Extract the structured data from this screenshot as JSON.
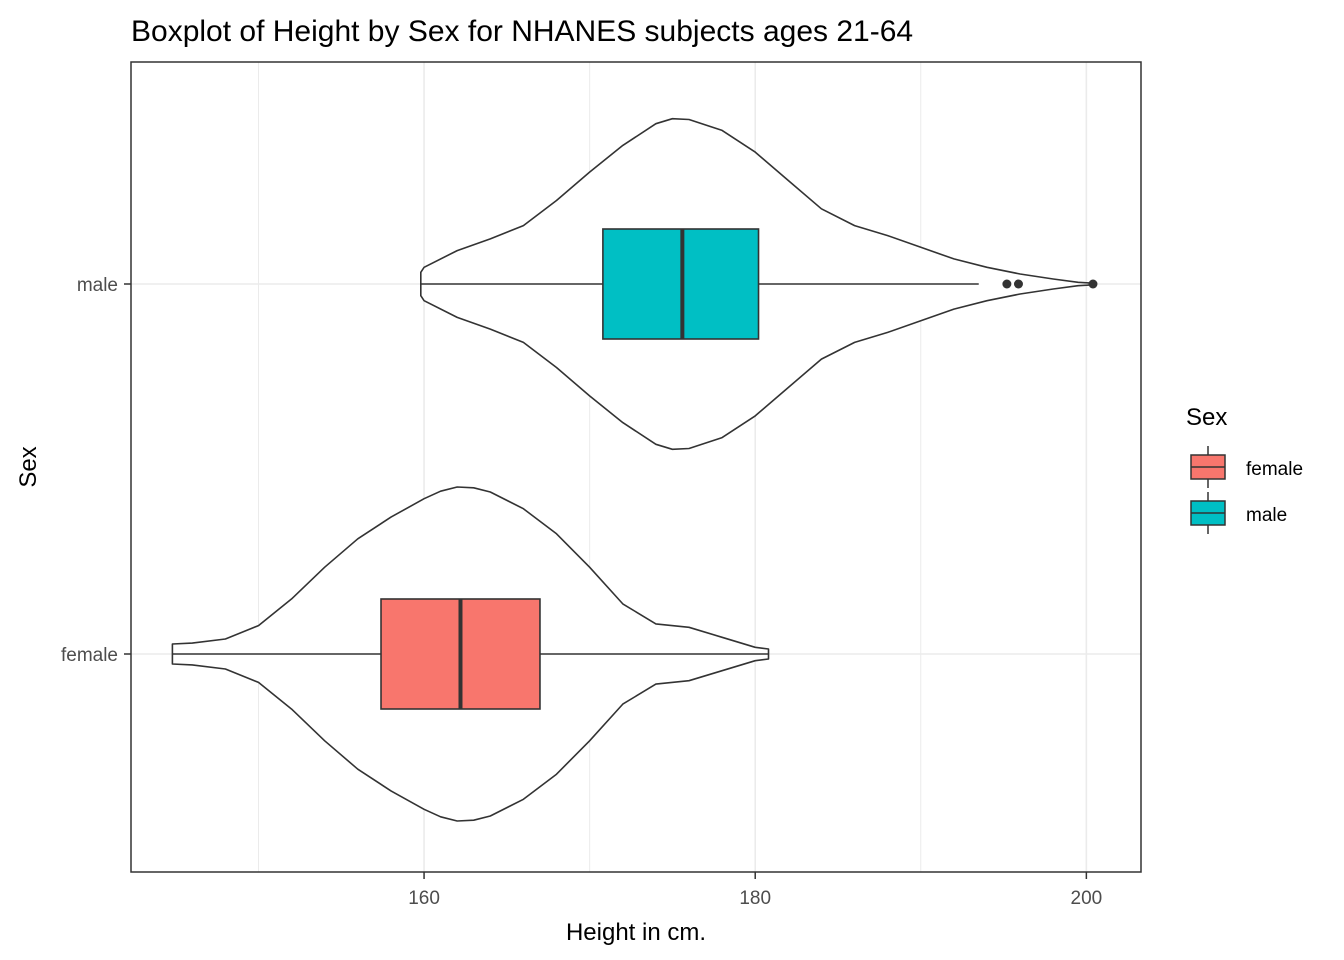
{
  "chart_data": {
    "type": "boxplot",
    "title": "Boxplot of Height by Sex for NHANES subjects ages 21-64",
    "xlabel": "Height in cm.",
    "ylabel": "Sex",
    "xlim": [
      142.3,
      203.3
    ],
    "x_ticks": [
      160,
      180,
      200
    ],
    "x_minor_ticks": [
      150,
      170,
      190
    ],
    "categories": [
      "female",
      "male"
    ],
    "grid": true,
    "legend": {
      "title": "Sex",
      "position": "right",
      "entries": [
        "female",
        "male"
      ]
    },
    "colors": {
      "female": "#F8766D",
      "male": "#00BFC4"
    },
    "series": [
      {
        "name": "female",
        "box": {
          "whisker_low": 144.8,
          "q1": 157.4,
          "median": 162.2,
          "q3": 167.0,
          "whisker_high": 180.8
        },
        "outliers": [],
        "violin": {
          "min": 144.8,
          "max": 180.8,
          "profile": [
            [
              144.8,
              0.06
            ],
            [
              146,
              0.065
            ],
            [
              148,
              0.09
            ],
            [
              150,
              0.17
            ],
            [
              152,
              0.33
            ],
            [
              154,
              0.52
            ],
            [
              156,
              0.69
            ],
            [
              158,
              0.82
            ],
            [
              160,
              0.93
            ],
            [
              161,
              0.975
            ],
            [
              162,
              1.0
            ],
            [
              163,
              0.995
            ],
            [
              164,
              0.97
            ],
            [
              166,
              0.87
            ],
            [
              168,
              0.72
            ],
            [
              170,
              0.52
            ],
            [
              172,
              0.3
            ],
            [
              174,
              0.18
            ],
            [
              176,
              0.16
            ],
            [
              178,
              0.1
            ],
            [
              180,
              0.04
            ],
            [
              180.8,
              0.03
            ]
          ]
        }
      },
      {
        "name": "male",
        "box": {
          "whisker_low": 159.8,
          "q1": 170.8,
          "median": 175.6,
          "q3": 180.2,
          "whisker_high": 193.5
        },
        "outliers": [
          195.2,
          195.9,
          200.4
        ],
        "violin": {
          "min": 159.8,
          "max": 200.4,
          "profile": [
            [
              159.8,
              0.07
            ],
            [
              160,
              0.1
            ],
            [
              162,
              0.2
            ],
            [
              164,
              0.27
            ],
            [
              166,
              0.35
            ],
            [
              168,
              0.5
            ],
            [
              170,
              0.67
            ],
            [
              172,
              0.83
            ],
            [
              174,
              0.96
            ],
            [
              175,
              0.99
            ],
            [
              176,
              0.985
            ],
            [
              178,
              0.92
            ],
            [
              180,
              0.79
            ],
            [
              182,
              0.62
            ],
            [
              184,
              0.45
            ],
            [
              186,
              0.35
            ],
            [
              188,
              0.29
            ],
            [
              190,
              0.22
            ],
            [
              192,
              0.15
            ],
            [
              194,
              0.1
            ],
            [
              196,
              0.06
            ],
            [
              198,
              0.03
            ],
            [
              199.5,
              0.01
            ],
            [
              200.4,
              0.005
            ]
          ]
        }
      }
    ]
  }
}
